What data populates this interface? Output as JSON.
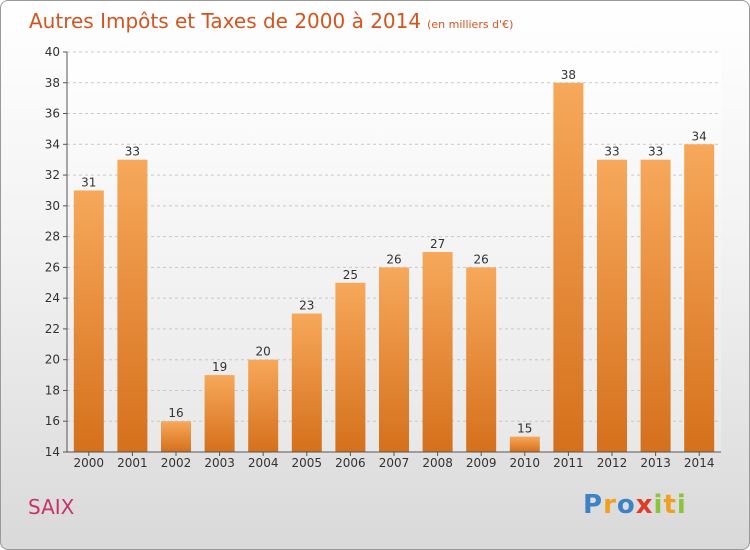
{
  "title": "Autres Impôts et Taxes de 2000 à 2014",
  "subtitle": "(en milliers d'€)",
  "city": "SAIX",
  "logo": {
    "letters": [
      "P",
      "r",
      "o",
      "x",
      "i",
      "t",
      "i"
    ],
    "colors": [
      "#3d82c4",
      "#f0a020",
      "#3d82c4",
      "#e03a2a",
      "#8cc43c",
      "#f0a020",
      "#8cc43c"
    ]
  },
  "colors": {
    "bar_top": "#f7a85a",
    "bar_bottom": "#d5701c",
    "title": "#d2541f",
    "city": "#c8326e"
  },
  "chart_data": {
    "type": "bar",
    "categories": [
      "2000",
      "2001",
      "2002",
      "2003",
      "2004",
      "2005",
      "2006",
      "2007",
      "2008",
      "2009",
      "2010",
      "2011",
      "2012",
      "2013",
      "2014"
    ],
    "values": [
      31,
      33,
      16,
      19,
      20,
      23,
      25,
      26,
      27,
      26,
      15,
      38,
      33,
      33,
      34
    ],
    "title": "Autres Impôts et Taxes de 2000 à 2014",
    "subtitle": "(en milliers d'€)",
    "ylim": [
      14,
      40
    ],
    "yticks": [
      14,
      16,
      18,
      20,
      22,
      24,
      26,
      28,
      30,
      32,
      34,
      36,
      38,
      40
    ],
    "grid": "horizontal dashed",
    "legend": "none"
  }
}
